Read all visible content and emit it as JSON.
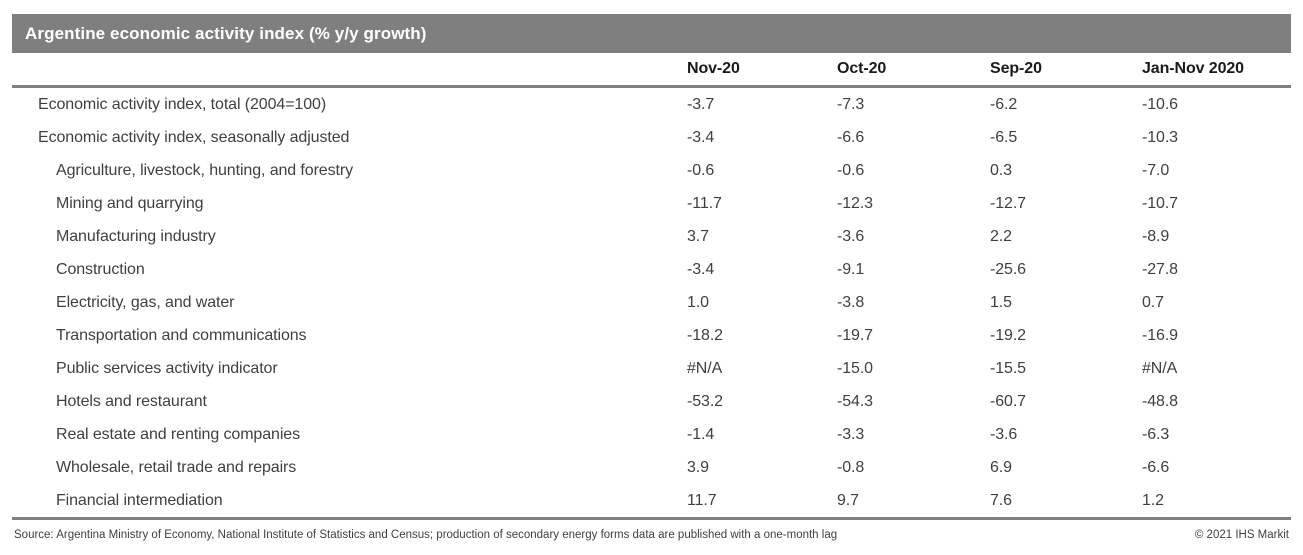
{
  "title": "Argentine economic activity index (% y/y growth)",
  "colors": {
    "title_bar_bg": "#7f7f7f",
    "title_text": "#ffffff",
    "rule": "#808080",
    "header_text": "#1a1a1a",
    "body_text": "#404040"
  },
  "chart_data": {
    "type": "table",
    "title": "Argentine economic activity index (% y/y growth)",
    "columns": [
      "Nov-20",
      "Oct-20",
      "Sep-20",
      "Jan-Nov 2020"
    ],
    "rows": [
      {
        "label": "Economic activity index, total (2004=100)",
        "indent": 0,
        "values": [
          "-3.7",
          "-7.3",
          "-6.2",
          "-10.6"
        ]
      },
      {
        "label": "Economic activity index, seasonally adjusted",
        "indent": 0,
        "values": [
          "-3.4",
          "-6.6",
          "-6.5",
          "-10.3"
        ]
      },
      {
        "label": "Agriculture, livestock, hunting, and forestry",
        "indent": 1,
        "values": [
          "-0.6",
          "-0.6",
          "0.3",
          "-7.0"
        ]
      },
      {
        "label": "Mining and quarrying",
        "indent": 1,
        "values": [
          "-11.7",
          "-12.3",
          "-12.7",
          "-10.7"
        ]
      },
      {
        "label": "Manufacturing industry",
        "indent": 1,
        "values": [
          "3.7",
          "-3.6",
          "2.2",
          "-8.9"
        ]
      },
      {
        "label": "Construction",
        "indent": 1,
        "values": [
          "-3.4",
          "-9.1",
          "-25.6",
          "-27.8"
        ]
      },
      {
        "label": "Electricity, gas, and water",
        "indent": 1,
        "values": [
          "1.0",
          "-3.8",
          "1.5",
          "0.7"
        ]
      },
      {
        "label": "Transportation and communications",
        "indent": 1,
        "values": [
          "-18.2",
          "-19.7",
          "-19.2",
          "-16.9"
        ]
      },
      {
        "label": "Public services activity indicator",
        "indent": 1,
        "values": [
          "#N/A",
          "-15.0",
          "-15.5",
          "#N/A"
        ]
      },
      {
        "label": "Hotels and restaurant",
        "indent": 1,
        "values": [
          "-53.2",
          "-54.3",
          "-60.7",
          "-48.8"
        ]
      },
      {
        "label": "Real estate and renting companies",
        "indent": 1,
        "values": [
          "-1.4",
          "-3.3",
          "-3.6",
          "-6.3"
        ]
      },
      {
        "label": "Wholesale, retail trade and repairs",
        "indent": 1,
        "values": [
          "3.9",
          "-0.8",
          "6.9",
          "-6.6"
        ]
      },
      {
        "label": "Financial intermediation",
        "indent": 1,
        "values": [
          "11.7",
          "9.7",
          "7.6",
          "1.2"
        ]
      }
    ]
  },
  "footer": {
    "source": "Source: Argentina Ministry of Economy, National Institute of Statistics and Census; production of secondary energy forms data are published with a one-month lag",
    "copyright": "© 2021 IHS Markit"
  }
}
